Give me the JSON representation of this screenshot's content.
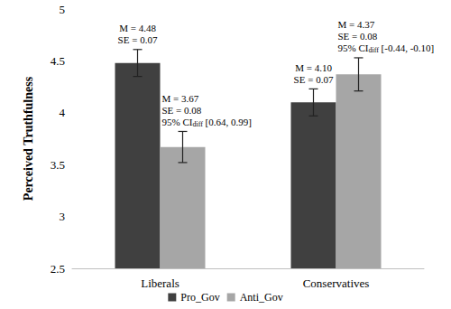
{
  "chart_data": {
    "type": "bar",
    "y_label": "Perceived Truthfulness",
    "categories": [
      "Liberals",
      "Conservatives"
    ],
    "series": [
      {
        "name": "Pro_Gov",
        "color": "#404040",
        "values": [
          4.48,
          4.1
        ],
        "errors": [
          0.13,
          0.13
        ],
        "annotations": [
          [
            "M = 4.48",
            "SE = 0.07"
          ],
          [
            "M = 4.10",
            "SE = 0.07"
          ]
        ]
      },
      {
        "name": "Anti_Gov",
        "color": "#a6a6a6",
        "values": [
          3.67,
          4.37
        ],
        "errors": [
          0.15,
          0.16
        ],
        "annotations": [
          [
            "M = 3.67",
            "SE = 0.08",
            {
              "text": "95% CI",
              "subscript": "diff",
              "after": " [0.64, 0.99]"
            }
          ],
          [
            "M = 4.37",
            "SE = 0.08",
            {
              "text": "95% CI",
              "subscript": "diff",
              "after": " [-0.44, -0.10]"
            }
          ]
        ]
      }
    ],
    "ylim": [
      2.5,
      5
    ],
    "yticks": [
      2.5,
      3,
      3.5,
      4,
      4.5,
      5
    ],
    "grid": false,
    "legend": "bottom"
  }
}
